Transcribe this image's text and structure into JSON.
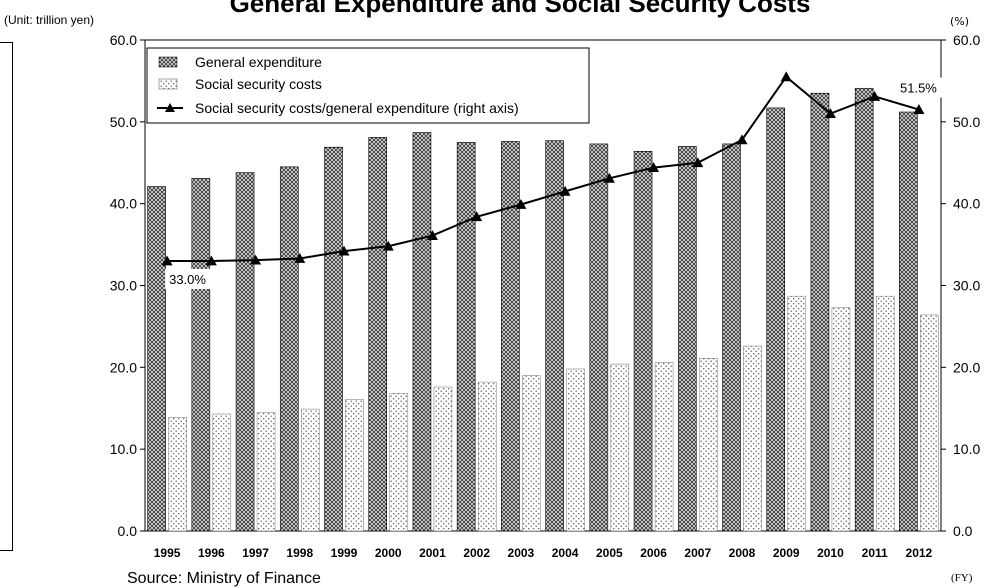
{
  "title": "General Expenditure and Social Security Costs",
  "left_unit": "(Unit: trillion yen)",
  "right_unit": "(%)",
  "x_unit": "(FY)",
  "source": "Source: Ministry of Finance",
  "chart_data": {
    "type": "bar",
    "title": "General Expenditure and Social Security Costs",
    "categories": [
      "1995",
      "1996",
      "1997",
      "1998",
      "1999",
      "2000",
      "2001",
      "2002",
      "2003",
      "2004",
      "2005",
      "2006",
      "2007",
      "2008",
      "2009",
      "2010",
      "2011",
      "2012"
    ],
    "series": [
      {
        "name": "General expenditure",
        "axis": "left",
        "type": "bar",
        "values": [
          42.1,
          43.1,
          43.8,
          44.5,
          46.9,
          48.1,
          48.7,
          47.5,
          47.6,
          47.7,
          47.3,
          46.4,
          47.0,
          47.3,
          51.7,
          53.5,
          54.1,
          51.2
        ]
      },
      {
        "name": "Social security costs",
        "axis": "left",
        "type": "bar",
        "values": [
          13.9,
          14.3,
          14.5,
          14.9,
          16.1,
          16.8,
          17.6,
          18.2,
          19.0,
          19.8,
          20.4,
          20.6,
          21.1,
          22.6,
          28.7,
          27.3,
          28.7,
          26.4
        ]
      },
      {
        "name": "Social security costs/general expenditure (right axis)",
        "axis": "right",
        "type": "line",
        "values": [
          33.0,
          33.0,
          33.1,
          33.3,
          34.2,
          34.8,
          36.1,
          38.4,
          39.9,
          41.5,
          43.1,
          44.4,
          45.0,
          47.8,
          55.5,
          51.0,
          53.1,
          51.5
        ]
      }
    ],
    "annotations": [
      {
        "series": 2,
        "index": 0,
        "text": "33.0%"
      },
      {
        "series": 2,
        "index": 17,
        "text": "51.5%"
      }
    ],
    "y_left": {
      "min": 0,
      "max": 60,
      "step": 10,
      "ticks": [
        "0.0",
        "10.0",
        "20.0",
        "30.0",
        "40.0",
        "50.0",
        "60.0"
      ]
    },
    "y_right": {
      "min": 0,
      "max": 60,
      "step": 10,
      "ticks": [
        "0.0",
        "10.0",
        "20.0",
        "30.0",
        "40.0",
        "50.0",
        "60.0"
      ]
    },
    "legend_position": "top-left",
    "grid": false
  }
}
